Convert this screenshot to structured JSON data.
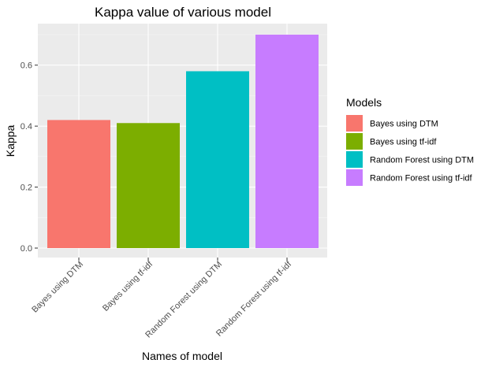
{
  "chart_data": {
    "type": "bar",
    "title": "Kappa value of various model",
    "xlabel": "Names of model",
    "ylabel": "Kappa",
    "categories": [
      "Bayes using DTM",
      "Bayes using tf-idf",
      "Random Forest using DTM",
      "Random Forest using tf-idf"
    ],
    "values": [
      0.42,
      0.41,
      0.58,
      0.7
    ],
    "colors": [
      "#F8766D",
      "#7CAE00",
      "#00BFC4",
      "#C77CFF"
    ],
    "ylim": [
      0,
      0.72
    ],
    "yticks": [
      0.0,
      0.2,
      0.4,
      0.6
    ],
    "ytick_labels": [
      "0.0",
      "0.2",
      "0.4",
      "0.6"
    ],
    "grid": true,
    "legend": {
      "title": "Models",
      "position": "right",
      "entries": [
        "Bayes using DTM",
        "Bayes using tf-idf",
        "Random Forest using DTM",
        "Random Forest using tf-idf"
      ]
    }
  }
}
